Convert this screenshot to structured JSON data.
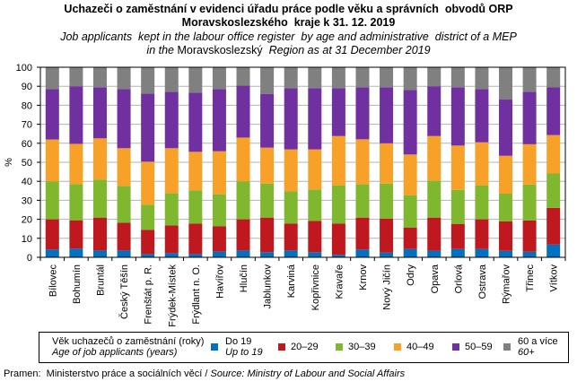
{
  "title": {
    "cz_line1": "Uchazeči o zaměstnání v evidenci úřadu práce podle věku a správních  obvodů ORP",
    "cz_line2": "Moravskoslezského  kraje k 31. 12. 2019",
    "en_line1": "Job applicants  kept in the labour office register  by age and administrative  district of a MEP",
    "en_line2_a": "in the ",
    "en_line2_b": "Moravskoslezský",
    "en_line2_c": "  Region as at 31 December 2019"
  },
  "legend": {
    "title_cz": "Věk uchazečů o zaměstnání (roky)",
    "title_en": "Age of job applicants (years)",
    "items": [
      {
        "label": "Do 19",
        "label_en": "Up to 19",
        "color": "#0070C0"
      },
      {
        "label": "20–29",
        "label_en": "",
        "color": "#C0181F"
      },
      {
        "label": "30–39",
        "label_en": "",
        "color": "#7FB82E"
      },
      {
        "label": "40–49",
        "label_en": "",
        "color": "#F7A128"
      },
      {
        "label": "50–59",
        "label_en": "",
        "color": "#7030A0"
      },
      {
        "label": "60 a více",
        "label_en": "60+",
        "color": "#808080"
      }
    ]
  },
  "source": {
    "cz": "Pramen:  Ministerstvo práce a sociálních věcí / ",
    "en": "Source: Ministry of Labour and Social Affairs"
  },
  "chart_data": {
    "type": "bar",
    "stacked": true,
    "title": "Uchazeči o zaměstnání v evidenci úřadu práce podle věku a správních obvodů ORP Moravskoslezského kraje k 31. 12. 2019",
    "xlabel": "",
    "ylabel": "%",
    "ylim": [
      0,
      100
    ],
    "yticks": [
      0,
      10,
      20,
      30,
      40,
      50,
      60,
      70,
      80,
      90,
      100
    ],
    "grid": true,
    "legend_position": "bottom",
    "categories": [
      "Bílovec",
      "Bohumín",
      "Bruntál",
      "Český Těšín",
      "Frenštát p. R.",
      "Frýdek-Místek",
      "Frýdlant n. O.",
      "Havířov",
      "Hlučín",
      "Jablunkov",
      "Karviná",
      "Kopřivnice",
      "Kravaře",
      "Krnov",
      "Nový Jičín",
      "Odry",
      "Opava",
      "Orlová",
      "Ostrava",
      "Rýmařov",
      "Třinec",
      "Vítkov"
    ],
    "series": [
      {
        "name": "Do 19",
        "values": [
          4.1,
          4.6,
          3.6,
          3.6,
          1.7,
          2.2,
          1.7,
          3.0,
          3.6,
          2.7,
          3.6,
          2.7,
          1.3,
          4.1,
          2.5,
          4.4,
          3.5,
          4.4,
          4.4,
          3.4,
          2.9,
          6.7
        ]
      },
      {
        "name": "20–29",
        "values": [
          15.9,
          14.9,
          17.3,
          14.6,
          12.8,
          14.6,
          16.1,
          13.4,
          16.4,
          18.2,
          14.2,
          16.5,
          16.5,
          16.8,
          17.9,
          11.3,
          17.4,
          13.2,
          15.6,
          15.5,
          16.5,
          19.3
        ]
      },
      {
        "name": "30–39",
        "values": [
          20.0,
          19.0,
          20.0,
          19.4,
          13.2,
          17.0,
          17.4,
          16.8,
          20.0,
          17.9,
          16.9,
          16.5,
          20.1,
          17.5,
          18.4,
          17.0,
          19.5,
          17.9,
          17.9,
          14.6,
          18.9,
          18.1
        ]
      },
      {
        "name": "40–49",
        "values": [
          22.0,
          21.2,
          21.7,
          19.8,
          22.6,
          23.6,
          20.3,
          22.6,
          23.0,
          18.9,
          22.1,
          21.1,
          25.9,
          23.7,
          21.2,
          21.4,
          23.4,
          23.3,
          22.6,
          19.9,
          21.2,
          20.2
        ]
      },
      {
        "name": "50–59",
        "values": [
          26.5,
          30.3,
          26.9,
          31.1,
          35.9,
          29.6,
          31.1,
          32.7,
          27.3,
          28.3,
          32.2,
          32.2,
          25.2,
          27.4,
          29.5,
          33.9,
          26.2,
          30.7,
          28.0,
          29.6,
          27.6,
          25.1
        ]
      },
      {
        "name": "60 a více",
        "values": [
          11.5,
          10.0,
          10.5,
          11.5,
          13.8,
          13.0,
          13.4,
          11.5,
          9.7,
          14.0,
          11.0,
          11.0,
          11.0,
          10.5,
          10.5,
          12.0,
          10.0,
          10.5,
          11.5,
          17.0,
          12.9,
          10.6
        ]
      }
    ]
  }
}
